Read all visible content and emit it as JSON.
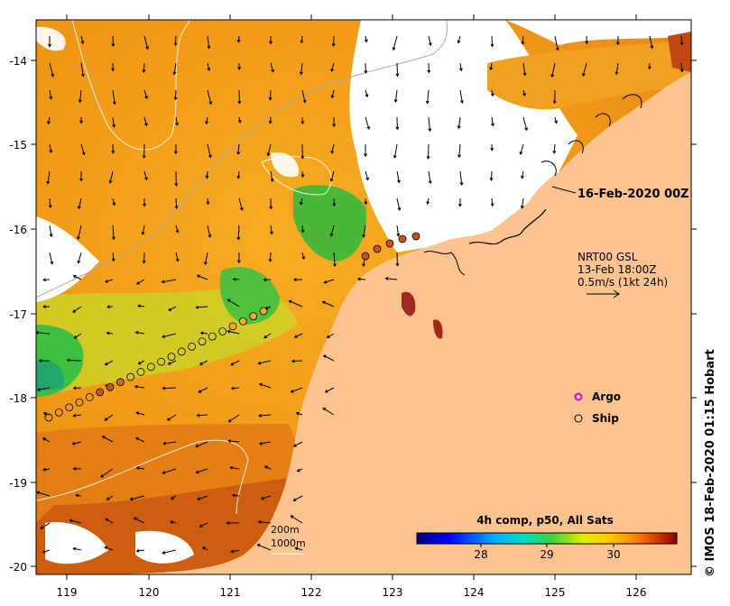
{
  "map": {
    "y_axis_labels": [
      "-14",
      "-15",
      "-16",
      "-17",
      "-18",
      "-19",
      "-20"
    ],
    "x_axis_labels": [
      "119",
      "120",
      "121",
      "122",
      "123",
      "124",
      "125",
      "126"
    ],
    "date_label": "16-Feb-2020 00Z",
    "current_note": {
      "line1": "NRT00 GSL",
      "line2": "13-Feb 18:00Z",
      "line3": "0.5m/s (1kt 24h)"
    },
    "legend": {
      "argo_label": "Argo",
      "ship_label": "Ship"
    },
    "contours": {
      "label_200": "200m",
      "label_1000": "1000m"
    },
    "colorbar": {
      "title": "4h comp, p50, All Sats",
      "tick_labels": [
        "28",
        "29",
        "30"
      ]
    },
    "credit": "© IMOS 18-Feb-2020 01:15 Hobart",
    "colors": {
      "land": "#fdc490",
      "warm_sst": "#f7a71c",
      "cool_sst": "#3fbf3f",
      "hot_sst": "#c8500c",
      "no_data": "#ffffff",
      "argo": "#e000e0"
    }
  }
}
